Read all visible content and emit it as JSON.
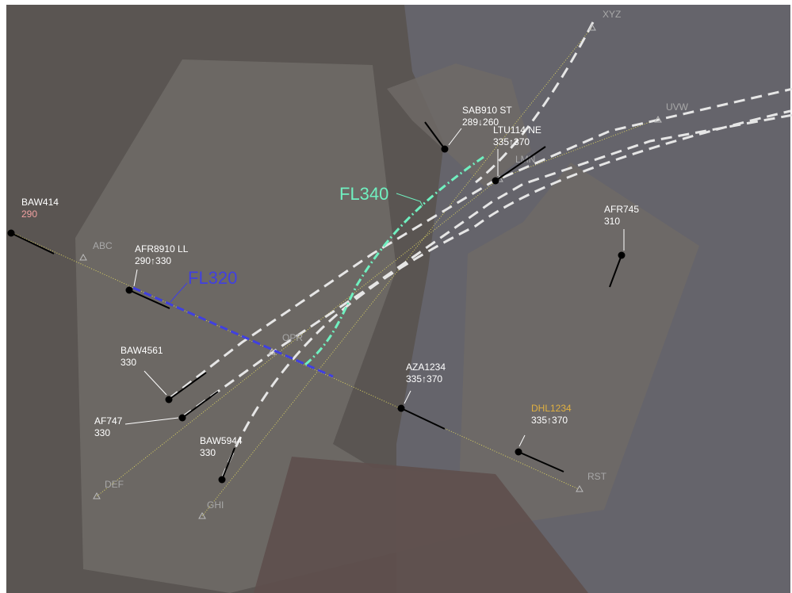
{
  "colors": {
    "background": "#ffffff",
    "airspace_outer": "#5a5552",
    "airspace_east": "#65646b",
    "sector_light": "#6e6a66",
    "sector_south": "#5e4f4c",
    "route_line": "#d8d060",
    "fix_symbol": "#bcbcbc",
    "fix_label": "#a8a8a8",
    "label_text": "#ffffff",
    "warning_text": "#f0a0a0",
    "highlight_text": "#e0b040",
    "trajectory_dash": "#e6e6e6",
    "fl340_line": "#70f0c0",
    "fl320_line": "#4040e0",
    "aircraft_symbol": "#000000"
  },
  "fixes": [
    {
      "id": "XYZ",
      "label": "XYZ"
    },
    {
      "id": "UVW",
      "label": "UVW"
    },
    {
      "id": "LMN",
      "label": "LMN"
    },
    {
      "id": "ABC",
      "label": "ABC"
    },
    {
      "id": "OPR",
      "label": "OPR"
    },
    {
      "id": "DEF",
      "label": "DEF"
    },
    {
      "id": "GHI",
      "label": "GHI"
    },
    {
      "id": "RST",
      "label": "RST"
    }
  ],
  "flight_levels": [
    {
      "id": "fl340",
      "label": "FL340"
    },
    {
      "id": "fl320",
      "label": "FL320"
    }
  ],
  "aircraft": [
    {
      "id": "baw414",
      "callsign": "BAW414",
      "level": "290",
      "level_style": "warning"
    },
    {
      "id": "afr8910",
      "callsign": "AFR8910 LL",
      "level": "290↑330",
      "level_style": "normal"
    },
    {
      "id": "sab910",
      "callsign": "SAB910  ST",
      "level": "289↓260",
      "level_style": "normal"
    },
    {
      "id": "ltu114",
      "callsign": "LTU114 NE",
      "level": "335↑370",
      "level_style": "normal"
    },
    {
      "id": "afr745",
      "callsign": "AFR745",
      "level": "310",
      "level_style": "normal"
    },
    {
      "id": "baw4561",
      "callsign": "BAW4561",
      "level": "330",
      "level_style": "normal"
    },
    {
      "id": "af747",
      "callsign": "AF747",
      "level": "330",
      "level_style": "normal"
    },
    {
      "id": "baw5944",
      "callsign": "BAW5944",
      "level": "330",
      "level_style": "normal"
    },
    {
      "id": "aza1234",
      "callsign": "AZA1234",
      "level": "335↑370",
      "level_style": "normal"
    },
    {
      "id": "dhl1234",
      "callsign": "DHL1234",
      "level": "335↑370",
      "level_style": "highlight"
    }
  ]
}
